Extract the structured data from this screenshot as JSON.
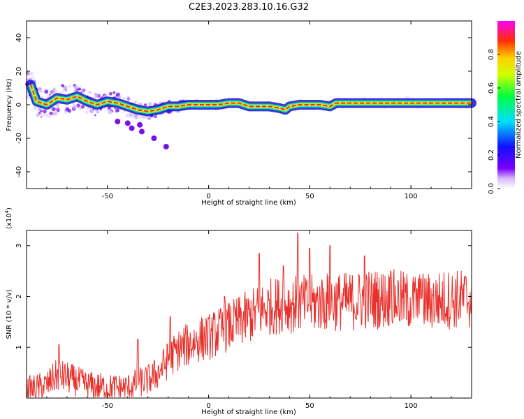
{
  "title": "C2E3.2023.283.10.16.G32",
  "colors": {
    "snr_line": "#e8302c",
    "track_core": "#e8302c",
    "track_outline": "#1a8a5a"
  },
  "chart_data": [
    {
      "type": "heatmap",
      "ylabel": "Frequency (Hz)",
      "xlabel": "Height of straight line (km)",
      "xlim": [
        -90,
        130
      ],
      "ylim": [
        -50,
        50
      ],
      "xticks": [
        "-50",
        "0",
        "50",
        "100"
      ],
      "yticks": [
        "40",
        "20",
        "0",
        "-20",
        "-40"
      ],
      "colorbar": {
        "label": "Normalized spectral amplitude",
        "range": [
          0,
          1
        ],
        "ticks": [
          "0.0",
          "0.2",
          "0.4",
          "0.6",
          "0.8"
        ]
      },
      "track": {
        "x": [
          -88,
          -85,
          -80,
          -75,
          -70,
          -65,
          -60,
          -55,
          -50,
          -45,
          -40,
          -35,
          -30,
          -25,
          -20,
          -15,
          -10,
          -5,
          0,
          5,
          10,
          15,
          20,
          25,
          30,
          35,
          38,
          40,
          45,
          50,
          55,
          60,
          63,
          70,
          80,
          90,
          100,
          110,
          120,
          130
        ],
        "y": [
          12,
          2,
          0,
          4,
          3,
          5,
          2,
          0,
          2,
          1,
          -1,
          -3,
          -4,
          -3,
          -1,
          -1,
          0,
          0,
          0,
          0,
          1,
          1,
          -1,
          -1,
          -1,
          -2,
          -3,
          -1,
          0,
          0,
          0,
          -1,
          1,
          1,
          1,
          1,
          1,
          1,
          1,
          1
        ]
      },
      "scatter_points": [
        {
          "x": -34,
          "y": -12
        },
        {
          "x": -33,
          "y": -16
        },
        {
          "x": -38,
          "y": -14
        },
        {
          "x": -27,
          "y": -20
        },
        {
          "x": -21,
          "y": -25
        },
        {
          "x": -45,
          "y": -10
        },
        {
          "x": -40,
          "y": -11
        }
      ]
    },
    {
      "type": "line",
      "ylabel": "SNR (10 * v/v)",
      "yscale_label": "(x10",
      "yscale_exp": "4",
      "xlabel": "Height of straight line (km)",
      "xlim": [
        -90,
        130
      ],
      "ylim": [
        0,
        3.3
      ],
      "xticks": [
        "-50",
        "0",
        "50",
        "100"
      ],
      "yticks": [
        "1",
        "2",
        "3"
      ],
      "envelope": {
        "x": [
          -90,
          -80,
          -75,
          -70,
          -60,
          -50,
          -40,
          -35,
          -30,
          -25,
          -20,
          -15,
          -10,
          -5,
          0,
          5,
          10,
          15,
          20,
          25,
          30,
          40,
          50,
          60,
          70,
          80,
          90,
          100,
          110,
          120,
          130
        ],
        "y": [
          0.15,
          0.25,
          0.45,
          0.4,
          0.25,
          0.2,
          0.2,
          0.3,
          0.35,
          0.5,
          0.75,
          0.95,
          1.05,
          1.15,
          1.2,
          1.3,
          1.4,
          1.5,
          1.6,
          1.7,
          1.8,
          1.85,
          1.85,
          1.9,
          1.9,
          1.95,
          1.95,
          1.9,
          1.9,
          1.95,
          1.95
        ]
      },
      "peaks": [
        {
          "x": -74,
          "y": 1.05
        },
        {
          "x": -35,
          "y": 1.15
        },
        {
          "x": -19,
          "y": 1.6
        },
        {
          "x": 8,
          "y": 2.0
        },
        {
          "x": 25,
          "y": 2.85
        },
        {
          "x": 37,
          "y": 2.6
        },
        {
          "x": 44,
          "y": 3.25
        },
        {
          "x": 50,
          "y": 2.95
        },
        {
          "x": 60,
          "y": 3.0
        },
        {
          "x": 77,
          "y": 2.8
        },
        {
          "x": 90,
          "y": 2.5
        },
        {
          "x": 105,
          "y": 2.35
        },
        {
          "x": 127,
          "y": 2.4
        }
      ]
    }
  ]
}
